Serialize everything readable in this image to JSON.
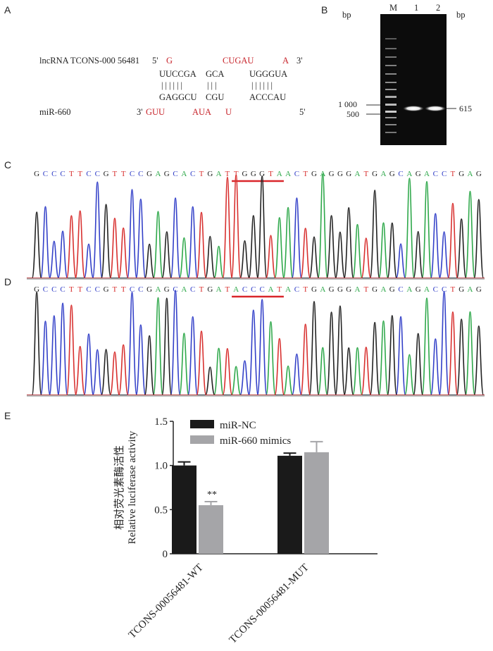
{
  "panel_labels": {
    "a": "A",
    "b": "B",
    "c": "C",
    "d": "D",
    "e": "E"
  },
  "panel_a": {
    "lnc_label": "lncRNA TCONS-000 56481",
    "lnc_5": "5'",
    "lnc_3": "3'",
    "lnc_top_red": [
      "G",
      "CUGAU",
      "A"
    ],
    "lnc_pairs": [
      "UUCCGA",
      "GCA",
      "UGGGUA"
    ],
    "bars": [
      "||||||",
      "|||",
      "||||||"
    ],
    "mir_pairs": [
      "GAGGCU",
      "CGU",
      "ACCCAU"
    ],
    "mir_label": "miR-660",
    "mir_3": "3'",
    "mir_5": "5'",
    "mir_bottom_red": [
      "GUU",
      "AUA",
      "U"
    ]
  },
  "panel_b": {
    "bp_left": "bp",
    "bp_right": "bp",
    "lanes": [
      "M",
      "1",
      "2"
    ],
    "marker_1000": "1 000",
    "marker_500": "500",
    "band_size": "615"
  },
  "panel_c": {
    "sequence": "GCCCTTCCGTTCCGAGCACTGATTGGGTAACTGAGGGATGAGCAGACCTGAG"
  },
  "panel_d": {
    "sequence": "GCCCTTCCGTTCCGAGCACTGATACCCATACTGAGGGATGAGCAGACCTGAG"
  },
  "colors": {
    "A": "#2ea84a",
    "C": "#3340c8",
    "G": "#222222",
    "T": "#d8302f",
    "bar_nc": "#1a1a1a",
    "bar_mimic": "#a5a5a8",
    "underline": "#d9262b"
  },
  "chart_data": {
    "type": "bar",
    "categories": [
      "TCONS-00056481-WT",
      "TCONS-00056481-MUT"
    ],
    "series": [
      {
        "name": "miR-NC",
        "values": [
          1.0,
          1.11
        ],
        "errors": [
          0.04,
          0.03
        ]
      },
      {
        "name": "miR-660 mimics",
        "values": [
          0.55,
          1.15
        ],
        "errors": [
          0.04,
          0.12
        ]
      }
    ],
    "ylabel_cn": "相对荧光素酶活性",
    "ylabel_en": "Relative luciferase activity",
    "ylim": [
      0,
      1.5
    ],
    "yticks": [
      "0",
      "0.5",
      "1.0",
      "1.5"
    ],
    "annotation": "**",
    "legend": "top-left",
    "grid": false
  }
}
